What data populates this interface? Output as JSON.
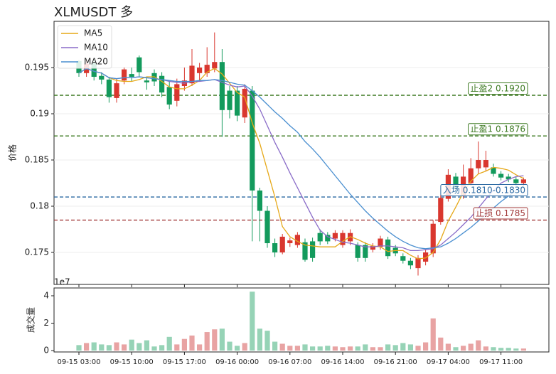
{
  "chart_data": {
    "type": "candlestick",
    "title": "XLMUSDT 多",
    "y_label": "价格",
    "volume_label": "成交量",
    "volume_offset_label": "1e7",
    "categories": [
      "09-15 03:00",
      null,
      null,
      null,
      null,
      null,
      null,
      "09-15 10:00",
      null,
      null,
      null,
      null,
      null,
      null,
      "09-15 17:00",
      null,
      null,
      null,
      null,
      null,
      null,
      "09-16 00:00",
      null,
      null,
      null,
      null,
      null,
      null,
      "09-16 07:00",
      null,
      null,
      null,
      null,
      null,
      null,
      "09-16 14:00",
      null,
      null,
      null,
      null,
      null,
      null,
      "09-16 21:00",
      null,
      null,
      null,
      null,
      null,
      null,
      "09-17 04:00",
      null,
      null,
      null,
      null,
      null,
      null,
      "09-17 11:00",
      null,
      null,
      null
    ],
    "open": [
      0.1957,
      0.1944,
      0.1955,
      0.1941,
      0.1937,
      0.1917,
      0.1936,
      0.1943,
      0.1961,
      0.1936,
      0.1944,
      0.1941,
      0.1929,
      0.1914,
      0.193,
      0.1933,
      0.1944,
      0.1944,
      0.1949,
      0.1956,
      0.1925,
      0.1925,
      0.1896,
      0.1925,
      0.1817,
      0.1795,
      0.176,
      0.175,
      0.176,
      0.1758,
      0.1761,
      0.1762,
      0.1771,
      0.1769,
      0.1765,
      0.1758,
      0.1762,
      0.1758,
      0.1758,
      0.1753,
      0.1756,
      0.1764,
      0.1755,
      0.1746,
      0.1741,
      0.1733,
      0.174,
      0.1749,
      0.1783,
      0.1808,
      0.1832,
      0.1811,
      0.1825,
      0.1841,
      0.1842,
      0.1842,
      0.1835,
      0.1832,
      0.1829,
      0.1825
    ],
    "high": [
      0.1958,
      0.1958,
      0.196,
      0.1945,
      0.194,
      0.1938,
      0.195,
      0.195,
      0.1963,
      0.194,
      0.1948,
      0.1945,
      0.1935,
      0.1938,
      0.195,
      0.197,
      0.1955,
      0.1972,
      0.1988,
      0.197,
      0.193,
      0.193,
      0.1932,
      0.193,
      0.182,
      0.18,
      0.1765,
      0.177,
      0.1766,
      0.1772,
      0.1765,
      0.1766,
      0.1775,
      0.1772,
      0.1774,
      0.1774,
      0.1775,
      0.1761,
      0.1761,
      0.176,
      0.1768,
      0.1767,
      0.1758,
      0.1749,
      0.1744,
      0.1747,
      0.1753,
      0.1785,
      0.1812,
      0.184,
      0.1836,
      0.1845,
      0.1852,
      0.187,
      0.186,
      0.1846,
      0.1838,
      0.1835,
      0.1832,
      0.1831
    ],
    "low": [
      0.194,
      0.194,
      0.1936,
      0.1932,
      0.1912,
      0.1912,
      0.1932,
      0.1935,
      0.194,
      0.1926,
      0.193,
      0.1918,
      0.1905,
      0.1908,
      0.1925,
      0.193,
      0.1935,
      0.194,
      0.1945,
      0.1875,
      0.1895,
      0.1892,
      0.189,
      0.1762,
      0.1762,
      0.1755,
      0.1745,
      0.1748,
      0.1756,
      0.1755,
      0.174,
      0.174,
      0.1758,
      0.1759,
      0.1762,
      0.1755,
      0.1758,
      0.174,
      0.174,
      0.175,
      0.1753,
      0.1743,
      0.1746,
      0.1738,
      0.1732,
      0.1725,
      0.1736,
      0.1745,
      0.178,
      0.1805,
      0.1815,
      0.1808,
      0.1822,
      0.1835,
      0.1838,
      0.1832,
      0.1828,
      0.1826,
      0.1822,
      0.1822
    ],
    "close": [
      0.1944,
      0.1954,
      0.194,
      0.1937,
      0.1918,
      0.1933,
      0.1948,
      0.194,
      0.1945,
      0.1934,
      0.1935,
      0.1923,
      0.191,
      0.1932,
      0.1936,
      0.1952,
      0.195,
      0.1953,
      0.1956,
      0.1904,
      0.1904,
      0.1898,
      0.1927,
      0.1817,
      0.1795,
      0.176,
      0.175,
      0.1767,
      0.1763,
      0.1769,
      0.1742,
      0.1744,
      0.1762,
      0.1762,
      0.1771,
      0.1771,
      0.1771,
      0.1744,
      0.1744,
      0.1757,
      0.1765,
      0.1746,
      0.1749,
      0.1741,
      0.1736,
      0.1744,
      0.175,
      0.1781,
      0.1809,
      0.1834,
      0.1819,
      0.1832,
      0.1841,
      0.185,
      0.185,
      0.1835,
      0.1831,
      0.1829,
      0.1825,
      0.1829
    ],
    "volume": [
      0.4,
      0.55,
      0.6,
      0.45,
      0.4,
      0.6,
      0.45,
      0.8,
      0.55,
      0.75,
      0.3,
      0.4,
      1.0,
      0.45,
      0.85,
      1.1,
      0.45,
      1.35,
      1.55,
      1.6,
      0.65,
      0.35,
      0.55,
      4.3,
      1.6,
      1.45,
      0.65,
      0.5,
      0.35,
      0.35,
      0.45,
      0.3,
      0.3,
      0.35,
      0.3,
      0.25,
      0.3,
      0.3,
      0.45,
      0.25,
      0.25,
      0.45,
      0.4,
      0.55,
      0.45,
      0.35,
      0.6,
      2.35,
      0.95,
      0.5,
      0.25,
      0.35,
      0.5,
      0.75,
      0.3,
      0.25,
      0.2,
      0.2,
      0.15,
      0.15
    ],
    "up_color": "#d9372f",
    "down_color": "#139a5c",
    "volume_up_color": "#e8a3a3",
    "volume_down_color": "#96d3b6",
    "series": [
      {
        "name": "MA5",
        "color": "#e6a817",
        "values": [
          0.1944,
          0.1949,
          0.1946,
          0.1944,
          0.1939,
          0.1936,
          0.1935,
          0.1935,
          0.1937,
          0.194,
          0.194,
          0.1935,
          0.1929,
          0.1927,
          0.1927,
          0.1931,
          0.1936,
          0.1945,
          0.1949,
          0.1943,
          0.1933,
          0.1923,
          0.1918,
          0.189,
          0.1868,
          0.1839,
          0.181,
          0.1778,
          0.1767,
          0.1762,
          0.1758,
          0.1757,
          0.1756,
          0.1756,
          0.1756,
          0.1762,
          0.1767,
          0.1764,
          0.176,
          0.1757,
          0.1756,
          0.1751,
          0.1752,
          0.1752,
          0.1747,
          0.1743,
          0.1744,
          0.175,
          0.1764,
          0.1784,
          0.1799,
          0.1815,
          0.1827,
          0.1835,
          0.1838,
          0.1842,
          0.1841,
          0.1839,
          0.1834,
          0.183
        ]
      },
      {
        "name": "MA10",
        "color": "#8a6cc8",
        "values": [
          0.1944,
          0.1949,
          0.1946,
          0.1944,
          0.1939,
          0.1938,
          0.1939,
          0.1939,
          0.194,
          0.1939,
          0.1938,
          0.1937,
          0.1935,
          0.1934,
          0.1933,
          0.1935,
          0.1935,
          0.1936,
          0.1937,
          0.1934,
          0.1931,
          0.1929,
          0.193,
          0.1919,
          0.1905,
          0.1887,
          0.1869,
          0.1853,
          0.1836,
          0.182,
          0.1804,
          0.1788,
          0.1774,
          0.1767,
          0.1764,
          0.1761,
          0.176,
          0.1758,
          0.1756,
          0.1756,
          0.1757,
          0.1757,
          0.1756,
          0.1755,
          0.1752,
          0.1752,
          0.1753,
          0.1754,
          0.1758,
          0.1765,
          0.1772,
          0.178,
          0.1788,
          0.1798,
          0.1808,
          0.1817,
          0.1825,
          0.1829,
          0.1832,
          0.1833
        ]
      },
      {
        "name": "MA20",
        "color": "#4a8fd0",
        "values": [
          0.1944,
          0.1949,
          0.1946,
          0.1944,
          0.1939,
          0.1938,
          0.1939,
          0.1939,
          0.194,
          0.1939,
          0.1938,
          0.1937,
          0.1936,
          0.1935,
          0.1935,
          0.1935,
          0.1936,
          0.1936,
          0.1937,
          0.1936,
          0.1934,
          0.1932,
          0.1931,
          0.1925,
          0.1918,
          0.191,
          0.1902,
          0.1895,
          0.1887,
          0.188,
          0.187,
          0.1862,
          0.1853,
          0.1843,
          0.1833,
          0.1823,
          0.1813,
          0.1804,
          0.1795,
          0.1787,
          0.178,
          0.1773,
          0.1767,
          0.1762,
          0.1758,
          0.1755,
          0.1754,
          0.1755,
          0.1756,
          0.176,
          0.1765,
          0.1771,
          0.1777,
          0.1784,
          0.1791,
          0.1798,
          0.1805,
          0.1811,
          0.1817,
          0.1822
        ]
      }
    ],
    "levels": [
      {
        "label": "止盈2 0.1920",
        "value": 0.192,
        "color": "#3d7a22"
      },
      {
        "label": "止盈1 0.1876",
        "value": 0.1876,
        "color": "#3d7a22"
      },
      {
        "label": "入场 0.1810-0.1830",
        "value": 0.181,
        "color": "#2c6aa3"
      },
      {
        "label": "止损 0.1785",
        "value": 0.1785,
        "color": "#a23a3a"
      }
    ],
    "ylim": [
      0.17154,
      0.2
    ],
    "yticks": [
      0.175,
      0.18,
      0.185,
      0.19,
      0.195
    ],
    "volume_ylim": [
      -0.1,
      4.57
    ],
    "volume_yticks": [
      0,
      2,
      4
    ],
    "grid": true,
    "legend": "upper left"
  }
}
